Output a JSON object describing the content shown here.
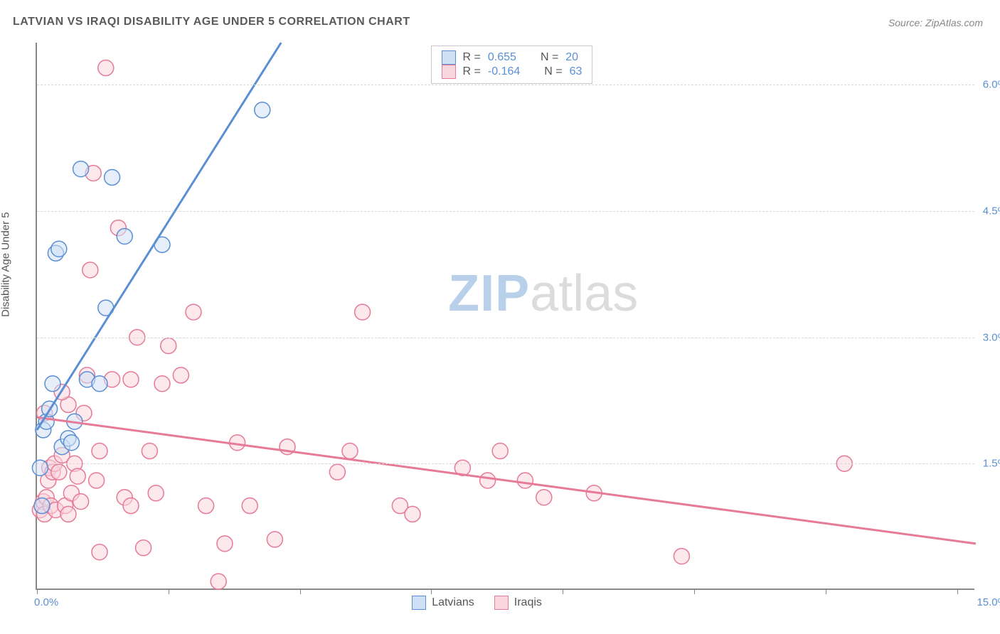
{
  "title": "LATVIAN VS IRAQI DISABILITY AGE UNDER 5 CORRELATION CHART",
  "source": "Source: ZipAtlas.com",
  "y_axis_label": "Disability Age Under 5",
  "watermark_zip": "ZIP",
  "watermark_atlas": "atlas",
  "chart": {
    "type": "scatter",
    "xlim": [
      0,
      15
    ],
    "ylim": [
      0,
      6.5
    ],
    "x_ticks": [
      0,
      2.1,
      4.2,
      6.3,
      8.4,
      10.5,
      12.6,
      14.7
    ],
    "x_tick_labels": {
      "0": "0.0%",
      "15": "15.0%"
    },
    "y_gridlines": [
      1.5,
      3.0,
      4.5,
      6.0
    ],
    "y_tick_labels": {
      "1.5": "1.5%",
      "3.0": "3.0%",
      "4.5": "4.5%",
      "6.0": "6.0%"
    },
    "background_color": "#ffffff",
    "grid_color": "#d8d8d8",
    "marker_radius": 11,
    "marker_opacity": 0.55,
    "line_width": 3,
    "series": {
      "latvians": {
        "label": "Latvians",
        "color_fill": "#cfe0f4",
        "color_stroke": "#5b8fd4",
        "R": "0.655",
        "N": "20",
        "regression": {
          "x1": 0,
          "y1": 1.9,
          "x2": 3.9,
          "y2": 6.5
        },
        "points": [
          [
            0.05,
            1.45
          ],
          [
            0.08,
            1.0
          ],
          [
            0.1,
            1.9
          ],
          [
            0.15,
            2.0
          ],
          [
            0.2,
            2.15
          ],
          [
            0.25,
            2.45
          ],
          [
            0.3,
            4.0
          ],
          [
            0.35,
            4.05
          ],
          [
            0.4,
            1.7
          ],
          [
            0.5,
            1.8
          ],
          [
            0.55,
            1.75
          ],
          [
            0.6,
            2.0
          ],
          [
            0.7,
            5.0
          ],
          [
            0.8,
            2.5
          ],
          [
            1.0,
            2.45
          ],
          [
            1.1,
            3.35
          ],
          [
            1.2,
            4.9
          ],
          [
            1.4,
            4.2
          ],
          [
            2.0,
            4.1
          ],
          [
            3.6,
            5.7
          ]
        ]
      },
      "iraqis": {
        "label": "Iraqis",
        "color_fill": "#f9d6de",
        "color_stroke": "#e77a96",
        "R": "-0.164",
        "N": "63",
        "regression": {
          "x1": 0,
          "y1": 2.05,
          "x2": 15,
          "y2": 0.55
        },
        "points": [
          [
            0.05,
            0.95
          ],
          [
            0.08,
            1.0
          ],
          [
            0.1,
            1.05
          ],
          [
            0.12,
            0.9
          ],
          [
            0.15,
            1.1
          ],
          [
            0.18,
            1.3
          ],
          [
            0.2,
            1.45
          ],
          [
            0.22,
            1.0
          ],
          [
            0.25,
            1.4
          ],
          [
            0.28,
            1.5
          ],
          [
            0.3,
            0.95
          ],
          [
            0.35,
            1.4
          ],
          [
            0.4,
            1.6
          ],
          [
            0.45,
            1.0
          ],
          [
            0.5,
            2.2
          ],
          [
            0.55,
            1.15
          ],
          [
            0.6,
            1.5
          ],
          [
            0.65,
            1.35
          ],
          [
            0.7,
            1.05
          ],
          [
            0.75,
            2.1
          ],
          [
            0.8,
            2.55
          ],
          [
            0.85,
            3.8
          ],
          [
            0.9,
            4.95
          ],
          [
            0.95,
            1.3
          ],
          [
            1.0,
            0.45
          ],
          [
            1.1,
            6.2
          ],
          [
            1.2,
            2.5
          ],
          [
            1.3,
            4.3
          ],
          [
            1.4,
            1.1
          ],
          [
            1.5,
            2.5
          ],
          [
            1.6,
            3.0
          ],
          [
            1.7,
            0.5
          ],
          [
            1.8,
            1.65
          ],
          [
            1.9,
            1.15
          ],
          [
            2.0,
            2.45
          ],
          [
            2.1,
            2.9
          ],
          [
            2.3,
            2.55
          ],
          [
            2.5,
            3.3
          ],
          [
            2.7,
            1.0
          ],
          [
            2.9,
            0.1
          ],
          [
            3.0,
            0.55
          ],
          [
            3.2,
            1.75
          ],
          [
            3.4,
            1.0
          ],
          [
            3.8,
            0.6
          ],
          [
            4.0,
            1.7
          ],
          [
            4.8,
            1.4
          ],
          [
            5.0,
            1.65
          ],
          [
            5.2,
            3.3
          ],
          [
            5.8,
            1.0
          ],
          [
            6.0,
            0.9
          ],
          [
            6.8,
            1.45
          ],
          [
            7.2,
            1.3
          ],
          [
            7.4,
            1.65
          ],
          [
            7.8,
            1.3
          ],
          [
            8.1,
            1.1
          ],
          [
            8.9,
            1.15
          ],
          [
            10.3,
            0.4
          ],
          [
            12.9,
            1.5
          ],
          [
            0.12,
            2.1
          ],
          [
            0.4,
            2.35
          ],
          [
            0.5,
            0.9
          ],
          [
            1.0,
            1.65
          ],
          [
            1.5,
            1.0
          ]
        ]
      }
    }
  },
  "legend_top": {
    "r_label": "R  = ",
    "n_label": "N  = "
  }
}
